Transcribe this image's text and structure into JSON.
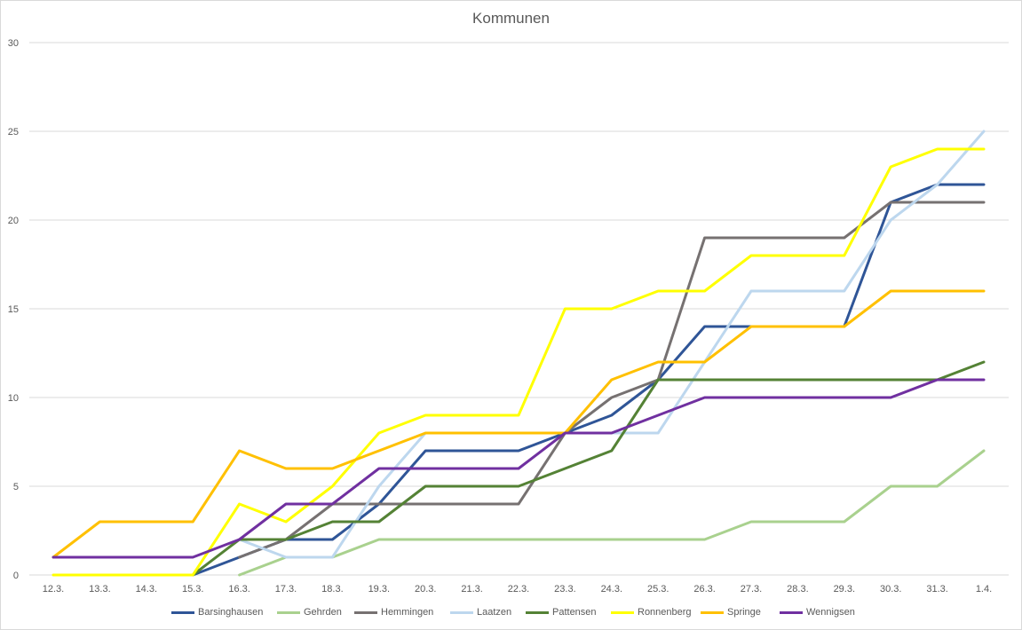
{
  "chart_data": {
    "type": "line",
    "title": "Kommunen",
    "xlabel": "",
    "ylabel": "",
    "ylim": [
      0,
      30
    ],
    "yticks": [
      0,
      5,
      10,
      15,
      20,
      25,
      30
    ],
    "grid": true,
    "legend_position": "bottom",
    "categories": [
      "12.3.",
      "13.3.",
      "14.3.",
      "15.3.",
      "16.3.",
      "17.3.",
      "18.3.",
      "19.3.",
      "20.3.",
      "21.3.",
      "22.3.",
      "23.3.",
      "24.3.",
      "25.3.",
      "26.3.",
      "27.3.",
      "28.3.",
      "29.3.",
      "30.3.",
      "31.3.",
      "1.4."
    ],
    "series": [
      {
        "name": "Barsinghausen",
        "color": "#2f5597",
        "values": [
          null,
          null,
          null,
          0,
          1,
          2,
          2,
          4,
          7,
          7,
          7,
          8,
          9,
          11,
          14,
          14,
          14,
          14,
          21,
          22,
          22
        ]
      },
      {
        "name": "Gehrden",
        "color": "#a9d18e",
        "values": [
          null,
          null,
          null,
          null,
          0,
          1,
          1,
          2,
          2,
          2,
          2,
          2,
          2,
          2,
          2,
          3,
          3,
          3,
          5,
          5,
          7
        ]
      },
      {
        "name": "Hemmingen",
        "color": "#767171",
        "values": [
          null,
          null,
          null,
          null,
          1,
          2,
          4,
          4,
          4,
          4,
          4,
          8,
          10,
          11,
          19,
          19,
          19,
          19,
          21,
          21,
          21
        ]
      },
      {
        "name": "Laatzen",
        "color": "#bdd7ee",
        "values": [
          null,
          null,
          null,
          null,
          2,
          1,
          1,
          5,
          8,
          8,
          8,
          8,
          8,
          8,
          12,
          16,
          16,
          16,
          20,
          22,
          25
        ]
      },
      {
        "name": "Pattensen",
        "color": "#548235",
        "values": [
          null,
          null,
          null,
          0,
          2,
          2,
          3,
          3,
          5,
          5,
          5,
          6,
          7,
          11,
          11,
          11,
          11,
          11,
          11,
          11,
          12
        ]
      },
      {
        "name": "Ronnenberg",
        "color": "#ffff00",
        "values": [
          0,
          0,
          0,
          0,
          4,
          3,
          5,
          8,
          9,
          9,
          9,
          15,
          15,
          16,
          16,
          18,
          18,
          18,
          23,
          24,
          24
        ]
      },
      {
        "name": "Springe",
        "color": "#ffc000",
        "values": [
          1,
          3,
          3,
          3,
          7,
          6,
          6,
          7,
          8,
          8,
          8,
          8,
          11,
          12,
          12,
          14,
          14,
          14,
          16,
          16,
          16
        ]
      },
      {
        "name": "Wennigsen",
        "color": "#7030a0",
        "values": [
          1,
          1,
          1,
          1,
          2,
          4,
          4,
          6,
          6,
          6,
          6,
          8,
          8,
          9,
          10,
          10,
          10,
          10,
          10,
          11,
          11
        ]
      }
    ]
  }
}
